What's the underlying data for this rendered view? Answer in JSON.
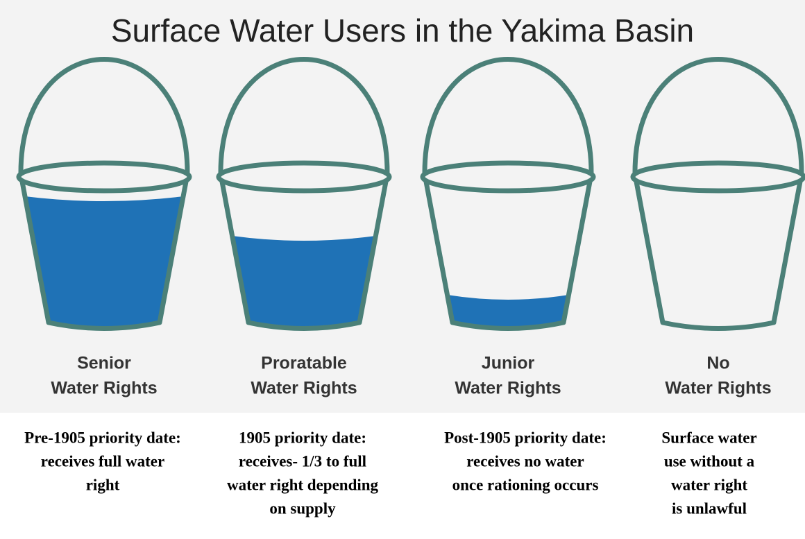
{
  "title": "Surface Water Users in the Yakima Basin",
  "buckets": [
    {
      "label": [
        "Senior",
        "Water Rights"
      ],
      "description": [
        "Pre-1905 priority date:",
        "receives full water",
        "right"
      ]
    },
    {
      "label": [
        "Proratable",
        "Water Rights"
      ],
      "description": [
        "1905 priority date:",
        "receives- 1/3 to full",
        "water right depending",
        "on supply"
      ]
    },
    {
      "label": [
        "Junior",
        "Water Rights"
      ],
      "description": [
        "Post-1905 priority date:",
        "receives no water",
        "once rationing occurs"
      ]
    },
    {
      "label": [
        "No",
        "Water Rights"
      ],
      "description": [
        "Surface water",
        "use without a",
        "water right",
        "is unlawful"
      ]
    }
  ]
}
